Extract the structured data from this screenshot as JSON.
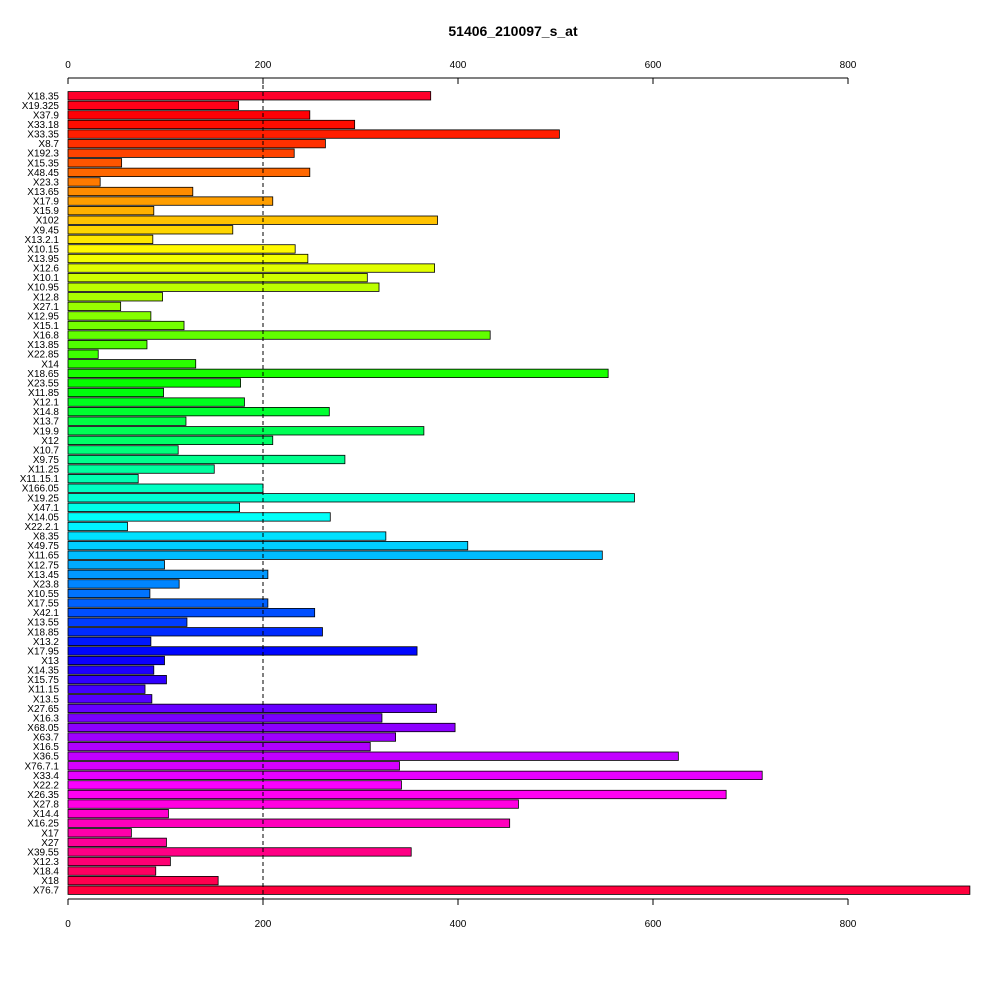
{
  "chart_data": {
    "type": "bar",
    "orientation": "horizontal",
    "title": "51406_210097_s_at",
    "xlabel": "",
    "ylabel": "",
    "xlim": [
      0,
      950
    ],
    "x_ticks": [
      0,
      200,
      400,
      600,
      800
    ],
    "x_tick_labels": [
      "0",
      "200",
      "400",
      "600",
      "800"
    ],
    "axes": [
      "top",
      "bottom"
    ],
    "reference_line": 200,
    "color_scheme": "rainbow",
    "categories": [
      "X18.35",
      "X19.325",
      "X37.9",
      "X33.18",
      "X33.35",
      "X8.7",
      "X192.3",
      "X15.35",
      "X48.45",
      "X23.3",
      "X13.65",
      "X17.9",
      "X15.9",
      "X102",
      "X9.45",
      "X13.2.1",
      "X10.15",
      "X13.95",
      "X12.6",
      "X10.1",
      "X10.95",
      "X12.8",
      "X27.1",
      "X12.95",
      "X15.1",
      "X16.8",
      "X13.85",
      "X22.85",
      "X14",
      "X18.65",
      "X23.55",
      "X11.85",
      "X12.1",
      "X14.8",
      "X13.7",
      "X19.9",
      "X12",
      "X10.7",
      "X9.75",
      "X11.25",
      "X11.15.1",
      "X166.05",
      "X19.25",
      "X47.1",
      "X14.05",
      "X22.2.1",
      "X8.35",
      "X49.75",
      "X11.65",
      "X12.75",
      "X13.45",
      "X23.8",
      "X10.55",
      "X17.55",
      "X42.1",
      "X13.55",
      "X18.85",
      "X13.2",
      "X17.95",
      "X13",
      "X14.35",
      "X15.75",
      "X11.15",
      "X13.5",
      "X27.65",
      "X16.3",
      "X68.05",
      "X63.7",
      "X16.5",
      "X36.5",
      "X76.7.1",
      "X33.4",
      "X22.2",
      "X26.35",
      "X27.8",
      "X14.4",
      "X16.25",
      "X17",
      "X27",
      "X39.55",
      "X12.3",
      "X18.4",
      "X18",
      "X76.7"
    ],
    "values": [
      372,
      175,
      248,
      294,
      504,
      264,
      232,
      55,
      248,
      33,
      128,
      210,
      88,
      379,
      169,
      87,
      233,
      246,
      376,
      307,
      319,
      97,
      54,
      85,
      119,
      433,
      81,
      31,
      131,
      554,
      177,
      98,
      181,
      268,
      121,
      365,
      210,
      113,
      284,
      150,
      72,
      200,
      581,
      176,
      269,
      61,
      326,
      410,
      548,
      99,
      205,
      114,
      84,
      205,
      253,
      122,
      261,
      85,
      358,
      99,
      88,
      101,
      79,
      86,
      378,
      322,
      397,
      336,
      310,
      626,
      340,
      712,
      342,
      675,
      462,
      103,
      453,
      65,
      101,
      352,
      105,
      90,
      154,
      925
    ]
  }
}
